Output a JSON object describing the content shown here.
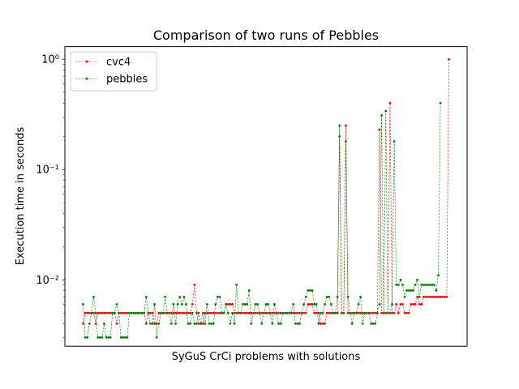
{
  "chart_data": {
    "type": "line",
    "title": "Comparison of two runs of Pebbles",
    "xlabel": "SyGuS CrCi problems with solutions",
    "ylabel": "Execution time in seconds",
    "yscale": "log",
    "ylim": [
      0.0025,
      1.3
    ],
    "yticks": [
      {
        "value": 0.01,
        "label": "10⁻²"
      },
      {
        "value": 0.1,
        "label": "10⁻¹"
      },
      {
        "value": 1,
        "label": "10⁰"
      }
    ],
    "x_ticks_shown": false,
    "legend_position": "top-left",
    "series": [
      {
        "name": "cvc4",
        "color": "#ff0000",
        "values": [
          0.004,
          0.005,
          0.005,
          0.005,
          0.005,
          0.005,
          0.004,
          0.005,
          0.005,
          0.005,
          0.005,
          0.005,
          0.005,
          0.005,
          0.005,
          0.005,
          0.004,
          0.005,
          0.005,
          0.005,
          0.005,
          0.005,
          0.005,
          0.005,
          0.005,
          0.005,
          0.005,
          0.005,
          0.005,
          0.005,
          0.004,
          0.005,
          0.005,
          0.005,
          0.004,
          0.004,
          0.005,
          0.005,
          0.005,
          0.005,
          0.005,
          0.005,
          0.005,
          0.005,
          0.005,
          0.005,
          0.005,
          0.005,
          0.005,
          0.005,
          0.005,
          0.005,
          0.006,
          0.009,
          0.005,
          0.004,
          0.004,
          0.004,
          0.005,
          0.005,
          0.005,
          0.005,
          0.005,
          0.005,
          0.005,
          0.005,
          0.005,
          0.005,
          0.006,
          0.006,
          0.006,
          0.006,
          0.005,
          0.005,
          0.005,
          0.005,
          0.005,
          0.005,
          0.005,
          0.005,
          0.005,
          0.005,
          0.005,
          0.005,
          0.005,
          0.005,
          0.005,
          0.005,
          0.005,
          0.005,
          0.005,
          0.005,
          0.005,
          0.005,
          0.005,
          0.005,
          0.005,
          0.005,
          0.005,
          0.005,
          0.005,
          0.005,
          0.005,
          0.005,
          0.005,
          0.005,
          0.005,
          0.006,
          0.006,
          0.006,
          0.005,
          0.005,
          0.005,
          0.004,
          0.004,
          0.004,
          0.005,
          0.005,
          0.005,
          0.005,
          0.005,
          0.005,
          0.2,
          0.005,
          0.005,
          0.25,
          0.005,
          0.005,
          0.005,
          0.005,
          0.005,
          0.005,
          0.005,
          0.005,
          0.005,
          0.005,
          0.005,
          0.005,
          0.005,
          0.005,
          0.005,
          0.23,
          0.005,
          0.005,
          0.005,
          0.005,
          0.4,
          0.005,
          0.005,
          0.006,
          0.005,
          0.006,
          0.006,
          0.005,
          0.005,
          0.005,
          0.006,
          0.006,
          0.006,
          0.007,
          0.006,
          0.006,
          0.007,
          0.007,
          0.007,
          0.007,
          0.007,
          0.007,
          0.007,
          0.007,
          0.007,
          0.007,
          0.007,
          0.007,
          1.0
        ]
      },
      {
        "name": "pebbles",
        "color": "#008000",
        "values": [
          0.006,
          0.003,
          0.003,
          0.004,
          0.005,
          0.007,
          0.005,
          0.003,
          0.003,
          0.003,
          0.004,
          0.003,
          0.003,
          0.003,
          0.005,
          0.005,
          0.006,
          0.005,
          0.003,
          0.003,
          0.003,
          0.003,
          0.005,
          0.005,
          0.005,
          0.005,
          0.005,
          0.005,
          0.005,
          0.005,
          0.007,
          0.005,
          0.004,
          0.004,
          0.006,
          0.003,
          0.004,
          0.005,
          0.005,
          0.007,
          0.005,
          0.005,
          0.004,
          0.006,
          0.004,
          0.006,
          0.007,
          0.006,
          0.007,
          0.006,
          0.004,
          0.004,
          0.005,
          0.004,
          0.004,
          0.005,
          0.004,
          0.005,
          0.004,
          0.006,
          0.004,
          0.004,
          0.004,
          0.006,
          0.007,
          0.007,
          0.005,
          0.005,
          0.006,
          0.005,
          0.004,
          0.005,
          0.004,
          0.009,
          0.005,
          0.005,
          0.006,
          0.006,
          0.006,
          0.008,
          0.004,
          0.005,
          0.006,
          0.006,
          0.005,
          0.004,
          0.005,
          0.006,
          0.006,
          0.005,
          0.004,
          0.006,
          0.005,
          0.004,
          0.004,
          0.005,
          0.005,
          0.005,
          0.005,
          0.005,
          0.006,
          0.004,
          0.004,
          0.004,
          0.005,
          0.006,
          0.007,
          0.008,
          0.008,
          0.008,
          0.006,
          0.006,
          0.004,
          0.005,
          0.005,
          0.006,
          0.007,
          0.007,
          0.006,
          0.005,
          0.005,
          0.007,
          0.25,
          0.005,
          0.005,
          0.18,
          0.007,
          0.005,
          0.004,
          0.005,
          0.005,
          0.006,
          0.007,
          0.004,
          0.005,
          0.005,
          0.005,
          0.004,
          0.004,
          0.004,
          0.005,
          0.006,
          0.31,
          0.005,
          0.34,
          0.005,
          0.005,
          0.006,
          0.18,
          0.009,
          0.009,
          0.01,
          0.009,
          0.007,
          0.008,
          0.008,
          0.008,
          0.008,
          0.009,
          0.01,
          0.007,
          0.009,
          0.009,
          0.009,
          0.009,
          0.009,
          0.009,
          0.009,
          0.008,
          0.011,
          0.4
        ]
      }
    ]
  }
}
